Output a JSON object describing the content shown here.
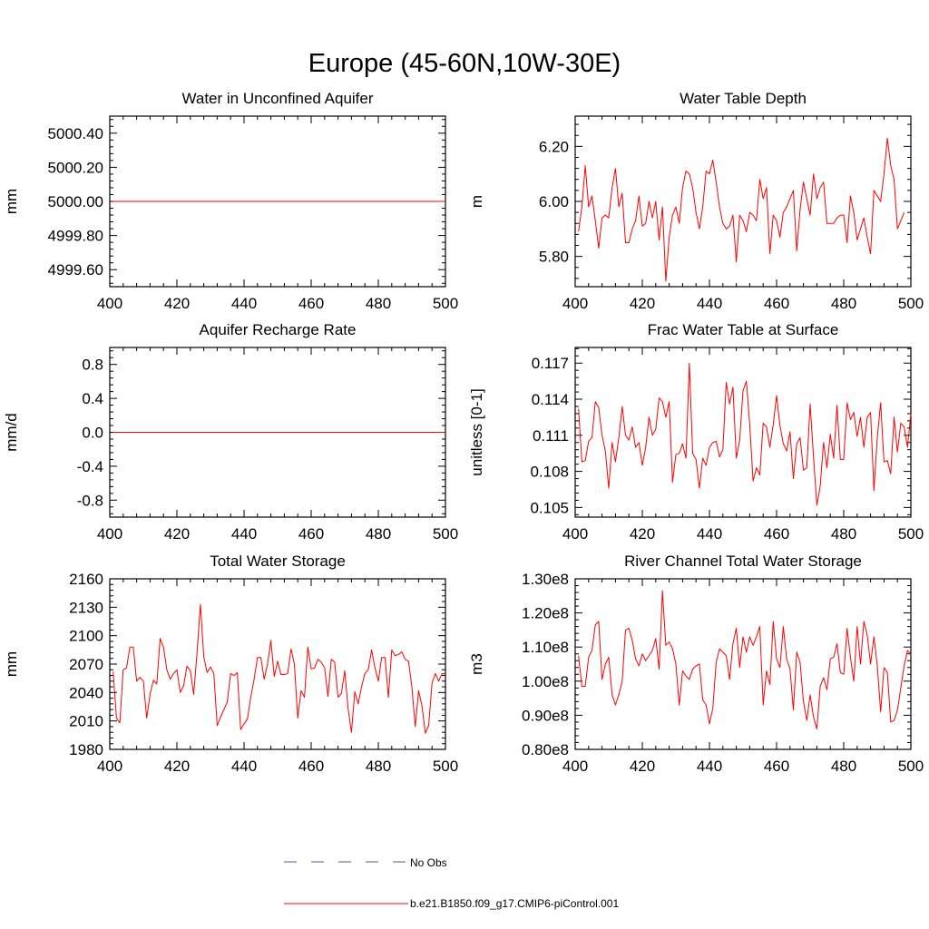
{
  "page_title": "Europe (45-60N,10W-30E)",
  "colors": {
    "model": "#ff0000",
    "obs": "#4b5aa8",
    "axis": "#000000"
  },
  "legend": {
    "obs_label": "No Obs",
    "model_label": "b.e21.B1850.f09_g17.CMIP6-piControl.001"
  },
  "chart_data": [
    {
      "type": "line",
      "title": "Water in Unconfined Aquifer",
      "xlabel": "",
      "ylabel": "mm",
      "xlim": [
        400,
        500
      ],
      "ylim": [
        4999.5,
        5000.5
      ],
      "xticks": [
        400,
        420,
        440,
        460,
        480,
        500
      ],
      "xtick_labels": [
        "400",
        "420",
        "440",
        "460",
        "480",
        "500"
      ],
      "yticks": [
        4999.6,
        4999.8,
        5000.0,
        5000.2,
        5000.4
      ],
      "ytick_labels": [
        "4999.60",
        "4999.80",
        "5000.00",
        "5000.20",
        "5000.40"
      ],
      "x_start": 401,
      "series": [
        {
          "name": "b.e21.B1850.f09_g17.CMIP6-piControl.001",
          "values": [
            5000,
            5000,
            5000,
            5000,
            5000,
            5000,
            5000,
            5000,
            5000,
            5000,
            5000,
            5000,
            5000,
            5000,
            5000,
            5000,
            5000,
            5000,
            5000,
            5000,
            5000,
            5000,
            5000,
            5000,
            5000,
            5000,
            5000,
            5000,
            5000,
            5000,
            5000,
            5000,
            5000,
            5000,
            5000,
            5000,
            5000,
            5000,
            5000,
            5000,
            5000,
            5000,
            5000,
            5000,
            5000,
            5000,
            5000,
            5000,
            5000,
            5000,
            5000,
            5000,
            5000,
            5000,
            5000,
            5000,
            5000,
            5000,
            5000,
            5000,
            5000,
            5000,
            5000,
            5000,
            5000,
            5000,
            5000,
            5000,
            5000,
            5000,
            5000,
            5000,
            5000,
            5000,
            5000,
            5000,
            5000,
            5000,
            5000,
            5000,
            5000,
            5000,
            5000,
            5000,
            5000,
            5000,
            5000,
            5000,
            5000,
            5000,
            5000,
            5000,
            5000,
            5000,
            5000,
            5000,
            5000,
            5000,
            5000,
            5000
          ]
        }
      ]
    },
    {
      "type": "line",
      "title": "Water Table Depth",
      "xlabel": "",
      "ylabel": "m",
      "xlim": [
        400,
        500
      ],
      "ylim": [
        5.69,
        6.31
      ],
      "xticks": [
        400,
        420,
        440,
        460,
        480,
        500
      ],
      "xtick_labels": [
        "400",
        "420",
        "440",
        "460",
        "480",
        "500"
      ],
      "yticks": [
        5.8,
        6.0,
        6.2
      ],
      "ytick_labels": [
        "5.80",
        "6.00",
        "6.20"
      ],
      "x_start": 401,
      "series": [
        {
          "name": "b.e21.B1850.f09_g17.CMIP6-piControl.001",
          "values": [
            5.89,
            5.98,
            6.13,
            5.98,
            6.02,
            5.93,
            5.83,
            5.94,
            5.95,
            5.94,
            6.05,
            6.12,
            5.98,
            6.03,
            5.85,
            5.85,
            5.9,
            5.93,
            6.02,
            5.91,
            5.92,
            6.0,
            5.94,
            6.0,
            5.86,
            5.98,
            5.71,
            5.87,
            5.95,
            5.98,
            5.92,
            6.05,
            6.11,
            6.1,
            6.05,
            5.96,
            5.9,
            5.98,
            6.11,
            6.1,
            6.15,
            6.07,
            5.98,
            5.92,
            5.9,
            5.91,
            5.95,
            5.78,
            5.95,
            5.93,
            5.89,
            5.96,
            5.95,
            5.93,
            6.08,
            6.01,
            6.05,
            5.81,
            5.95,
            5.93,
            5.87,
            5.96,
            5.98,
            6.01,
            6.04,
            5.82,
            5.97,
            6.07,
            6.01,
            5.95,
            6.1,
            6.01,
            6.05,
            6.07,
            5.92,
            5.92,
            5.92,
            5.94,
            5.95,
            5.95,
            5.85,
            6.02,
            5.96,
            5.86,
            5.9,
            5.94,
            5.87,
            5.81,
            6.04,
            6.02,
            6.0,
            6.1,
            6.23,
            6.13,
            6.08,
            5.9,
            5.93,
            5.96
          ]
        }
      ]
    },
    {
      "type": "line",
      "title": "Aquifer Recharge Rate",
      "xlabel": "",
      "ylabel": "mm/d",
      "xlim": [
        400,
        500
      ],
      "ylim": [
        -1.0,
        1.0
      ],
      "xticks": [
        400,
        420,
        440,
        460,
        480,
        500
      ],
      "xtick_labels": [
        "400",
        "420",
        "440",
        "460",
        "480",
        "500"
      ],
      "yticks": [
        -0.8,
        -0.4,
        0.0,
        0.4,
        0.8
      ],
      "ytick_labels": [
        "-0.8",
        "-0.4",
        "0.0",
        "0.4",
        "0.8"
      ],
      "x_start": 401,
      "series": [
        {
          "name": "b.e21.B1850.f09_g17.CMIP6-piControl.001",
          "values": [
            0,
            0,
            0,
            0,
            0,
            0,
            0,
            0,
            0,
            0,
            0,
            0,
            0,
            0,
            0,
            0,
            0,
            0,
            0,
            0,
            0,
            0,
            0,
            0,
            0,
            0,
            0,
            0,
            0,
            0,
            0,
            0,
            0,
            0,
            0,
            0,
            0,
            0,
            0,
            0,
            0,
            0,
            0,
            0,
            0,
            0,
            0,
            0,
            0,
            0,
            0,
            0,
            0,
            0,
            0,
            0,
            0,
            0,
            0,
            0,
            0,
            0,
            0,
            0,
            0,
            0,
            0,
            0,
            0,
            0,
            0,
            0,
            0,
            0,
            0,
            0,
            0,
            0,
            0,
            0,
            0,
            0,
            0,
            0,
            0,
            0,
            0,
            0,
            0,
            0,
            0,
            0,
            0,
            0,
            0,
            0,
            0,
            0,
            0,
            0
          ]
        }
      ]
    },
    {
      "type": "line",
      "title": "Frac Water Table at Surface",
      "xlabel": "",
      "ylabel": "unitless [0-1]",
      "xlim": [
        400,
        500
      ],
      "ylim": [
        0.1042,
        0.1183
      ],
      "xticks": [
        400,
        420,
        440,
        460,
        480,
        500
      ],
      "xtick_labels": [
        "400",
        "420",
        "440",
        "460",
        "480",
        "500"
      ],
      "yticks": [
        0.105,
        0.108,
        0.111,
        0.114,
        0.117
      ],
      "ytick_labels": [
        "0.105",
        "0.108",
        "0.111",
        "0.114",
        "0.117"
      ],
      "x_start": 401,
      "series": [
        {
          "name": "b.e21.B1850.f09_g17.CMIP6-piControl.001",
          "values": [
            0.1132,
            0.1088,
            0.1089,
            0.1105,
            0.1108,
            0.1138,
            0.1133,
            0.111,
            0.1097,
            0.1066,
            0.1104,
            0.1088,
            0.1108,
            0.1134,
            0.111,
            0.1106,
            0.1117,
            0.11,
            0.1104,
            0.1085,
            0.11,
            0.1125,
            0.111,
            0.1115,
            0.1141,
            0.1138,
            0.1125,
            0.1138,
            0.1071,
            0.1094,
            0.1095,
            0.1103,
            0.1091,
            0.117,
            0.1095,
            0.109,
            0.1066,
            0.1091,
            0.1085,
            0.11,
            0.1104,
            0.1105,
            0.1092,
            0.1098,
            0.1154,
            0.1136,
            0.115,
            0.1091,
            0.1106,
            0.1147,
            0.1155,
            0.1119,
            0.1072,
            0.1083,
            0.1077,
            0.112,
            0.1117,
            0.11,
            0.1119,
            0.1143,
            0.1118,
            0.1103,
            0.1097,
            0.1113,
            0.1074,
            0.1103,
            0.1108,
            0.1081,
            0.1083,
            0.1136,
            0.1092,
            0.1052,
            0.1068,
            0.1104,
            0.1083,
            0.1111,
            0.1091,
            0.1135,
            0.109,
            0.109,
            0.1137,
            0.1123,
            0.1129,
            0.1109,
            0.1125,
            0.11,
            0.1125,
            0.1129,
            0.1064,
            0.1108,
            0.1137,
            0.1088,
            0.1089,
            0.1078,
            0.1125,
            0.1096,
            0.112,
            0.1117,
            0.11,
            0.1128
          ]
        }
      ]
    },
    {
      "type": "line",
      "title": "Total Water Storage",
      "xlabel": "",
      "ylabel": "mm",
      "xlim": [
        400,
        500
      ],
      "ylim": [
        1980,
        2160
      ],
      "xticks": [
        400,
        420,
        440,
        460,
        480,
        500
      ],
      "xtick_labels": [
        "400",
        "420",
        "440",
        "460",
        "480",
        "500"
      ],
      "yticks": [
        1980,
        2010,
        2040,
        2070,
        2100,
        2130,
        2160
      ],
      "ytick_labels": [
        "1980",
        "2010",
        "2040",
        "2070",
        "2100",
        "2130",
        "2160"
      ],
      "x_start": 401,
      "series": [
        {
          "name": "b.e21.B1850.f09_g17.CMIP6-piControl.001",
          "values": [
            2062,
            2013,
            2008,
            2064,
            2066,
            2088,
            2088,
            2052,
            2056,
            2052,
            2013,
            2038,
            2053,
            2049,
            2097,
            2088,
            2064,
            2054,
            2060,
            2064,
            2040,
            2047,
            2068,
            2063,
            2038,
            2082,
            2133,
            2078,
            2061,
            2067,
            2060,
            2005,
            2014,
            2022,
            2030,
            2060,
            2058,
            2061,
            2001,
            2007,
            2012,
            2035,
            2054,
            2077,
            2077,
            2054,
            2070,
            2095,
            2057,
            2073,
            2059,
            2059,
            2060,
            2086,
            2070,
            2013,
            2042,
            2035,
            2088,
            2065,
            2066,
            2075,
            2072,
            2066,
            2036,
            2075,
            2072,
            2035,
            2039,
            2063,
            2023,
            1998,
            2041,
            2028,
            2046,
            2060,
            2064,
            2085,
            2066,
            2052,
            2077,
            2077,
            2035,
            2085,
            2079,
            2080,
            2083,
            2075,
            2073,
            2046,
            2004,
            2042,
            2026,
            1997,
            2005,
            2050,
            2060,
            2052,
            2060,
            2060
          ]
        }
      ]
    },
    {
      "type": "line",
      "title": "River Channel Total Water Storage",
      "xlabel": "",
      "ylabel": "m3",
      "xlim": [
        400,
        500
      ],
      "ylim": [
        80000000.0,
        130000000.0
      ],
      "xticks": [
        400,
        420,
        440,
        460,
        480,
        500
      ],
      "xtick_labels": [
        "400",
        "420",
        "440",
        "460",
        "480",
        "500"
      ],
      "yticks": [
        80000000.0,
        90000000.0,
        100000000.0,
        110000000.0,
        120000000.0,
        130000000.0
      ],
      "ytick_labels": [
        "0.80e8",
        "0.90e8",
        "1.00e8",
        "1.10e8",
        "1.20e8",
        "1.30e8"
      ],
      "x_start": 401,
      "series": [
        {
          "name": "b.e21.B1850.f09_g17.CMIP6-piControl.001",
          "values": [
            107500000.0,
            98500000.0,
            98500000.0,
            107000000.0,
            109000000.0,
            116500000.0,
            117500000.0,
            100500000.0,
            105000000.0,
            107000000.0,
            96000000.0,
            93000000.0,
            96000000.0,
            100000000.0,
            115000000.0,
            115500000.0,
            112000000.0,
            106500000.0,
            104500000.0,
            108000000.0,
            106000000.0,
            107500000.0,
            109000000.0,
            112500000.0,
            103500000.0,
            126500000.0,
            110500000.0,
            111500000.0,
            109500000.0,
            105000000.0,
            93000000.0,
            103000000.0,
            101500000.0,
            100500000.0,
            103500000.0,
            104500000.0,
            105000000.0,
            94500000.0,
            93000000.0,
            87500000.0,
            92000000.0,
            105500000.0,
            109500000.0,
            108500000.0,
            107500000.0,
            100500000.0,
            111000000.0,
            115500000.0,
            104000000.0,
            113000000.0,
            108500000.0,
            113000000.0,
            110500000.0,
            113000000.0,
            116000000.0,
            93000000.0,
            103000000.0,
            99000000.0,
            117500000.0,
            106500000.0,
            104000000.0,
            116000000.0,
            106500000.0,
            103500000.0,
            91500000.0,
            108500000.0,
            105500000.0,
            94000000.0,
            88500000.0,
            96000000.0,
            89500000.0,
            86000000.0,
            98500000.0,
            101000000.0,
            97500000.0,
            106500000.0,
            107000000.0,
            111000000.0,
            102500000.0,
            102000000.0,
            115500000.0,
            107000000.0,
            100000000.0,
            116000000.0,
            105000000.0,
            117500000.0,
            113500000.0,
            105000000.0,
            113000000.0,
            104500000.0,
            91000000.0,
            104000000.0,
            102500000.0,
            88000000.0,
            88500000.0,
            91500000.0,
            98000000.0,
            104500000.0,
            109000000.0,
            108000000.0
          ]
        }
      ]
    }
  ]
}
